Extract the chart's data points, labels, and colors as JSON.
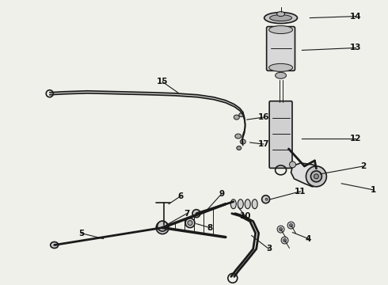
{
  "bg_color": "#f0f0eb",
  "line_color": "#1a1a1a",
  "label_color": "#111111",
  "fig_width": 4.9,
  "fig_height": 3.6,
  "dpi": 100
}
